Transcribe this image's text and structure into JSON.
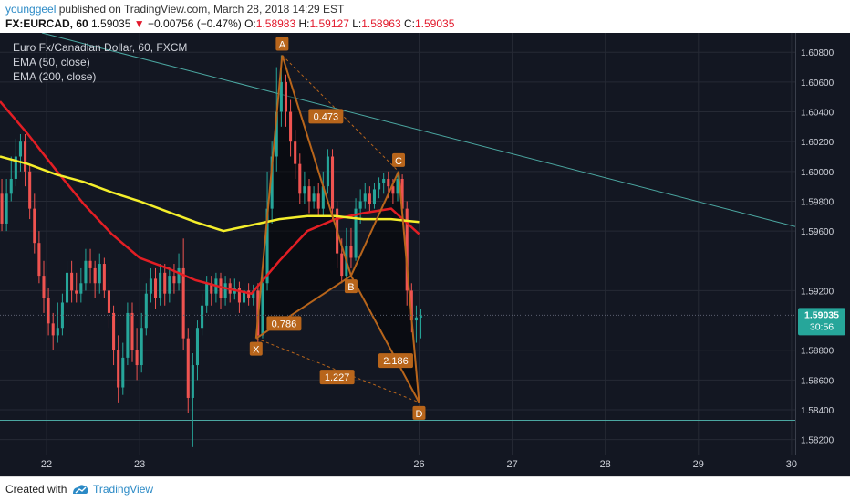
{
  "header": {
    "user": "younggeel",
    "published": "published on TradingView.com, March 28, 2018 14:29 EST",
    "symbol": "FX:EURCAD, 60",
    "last": "1.59035",
    "change_arrow": "▼",
    "change": "−0.00756 (−0.47%)",
    "o_label": "O:",
    "o_val": "1.58983",
    "h_label": "H:",
    "h_val": "1.59127",
    "l_label": "L:",
    "l_val": "1.58963",
    "c_label": "C:",
    "c_val": "1.59035"
  },
  "legend": {
    "title": "Euro Fx/Canadian Dollar, 60, FXCM",
    "ema50": "EMA (50, close)",
    "ema200": "EMA (200, close)"
  },
  "price_tag": {
    "price": "1.59035",
    "countdown": "30:56"
  },
  "footer": {
    "created": "Created with",
    "brand": "TradingView"
  },
  "colors": {
    "background": "#131722",
    "up": "#26a69a",
    "down": "#ef5350",
    "ema50": "#e31e24",
    "ema200": "#f4ee2b",
    "pattern": "#b8651b",
    "trendline": "#4ba7a1"
  },
  "chart_data": {
    "type": "candlestick",
    "title": "Euro Fx/Canadian Dollar, 60, FXCM",
    "ylim": [
      1.581,
      1.6093
    ],
    "xlim": [
      21.5,
      30.04
    ],
    "y_ticks": [
      "1.60800",
      "1.60600",
      "1.60400",
      "1.60200",
      "1.60000",
      "1.59800",
      "1.59600",
      "1.59200",
      "1.58800",
      "1.58600",
      "1.58400",
      "1.58200"
    ],
    "x_ticks": [
      {
        "x": 22,
        "label": "22"
      },
      {
        "x": 23,
        "label": "23"
      },
      {
        "x": 26,
        "label": "26"
      },
      {
        "x": 27,
        "label": "27"
      },
      {
        "x": 28,
        "label": "28"
      },
      {
        "x": 29,
        "label": "29"
      },
      {
        "x": 30,
        "label": "30"
      }
    ],
    "candles": [
      [
        21.52,
        1.5985,
        1.5965,
        1.5995,
        1.596
      ],
      [
        21.57,
        1.5965,
        1.5985,
        1.5995,
        1.596
      ],
      [
        21.62,
        1.5985,
        1.5995,
        1.601,
        1.598
      ],
      [
        21.67,
        1.5995,
        1.601,
        1.6022,
        1.599
      ],
      [
        21.72,
        1.601,
        1.602,
        1.6025,
        1.6
      ],
      [
        21.77,
        1.602,
        1.6,
        1.6025,
        1.599
      ],
      [
        21.82,
        1.6,
        1.5975,
        1.6005,
        1.5968
      ],
      [
        21.87,
        1.5975,
        1.5952,
        1.5985,
        1.5945
      ],
      [
        21.92,
        1.5952,
        1.593,
        1.596,
        1.5925
      ],
      [
        21.97,
        1.593,
        1.5915,
        1.594,
        1.5905
      ],
      [
        22.02,
        1.5915,
        1.5898,
        1.5922,
        1.589
      ],
      [
        22.07,
        1.5898,
        1.589,
        1.5905,
        1.588
      ],
      [
        22.12,
        1.589,
        1.5895,
        1.5912,
        1.5885
      ],
      [
        22.17,
        1.5895,
        1.5912,
        1.5918,
        1.589
      ],
      [
        22.22,
        1.5912,
        1.5932,
        1.594,
        1.5908
      ],
      [
        22.27,
        1.5932,
        1.592,
        1.594,
        1.5912
      ],
      [
        22.32,
        1.592,
        1.5918,
        1.5932,
        1.5912
      ],
      [
        22.37,
        1.5918,
        1.5925,
        1.5935,
        1.5912
      ],
      [
        22.42,
        1.5925,
        1.594,
        1.5948,
        1.592
      ],
      [
        22.47,
        1.594,
        1.5935,
        1.5948,
        1.5925
      ],
      [
        22.52,
        1.5935,
        1.5925,
        1.594,
        1.5915
      ],
      [
        22.57,
        1.5925,
        1.5938,
        1.5945,
        1.5918
      ],
      [
        22.62,
        1.5938,
        1.592,
        1.5942,
        1.5915
      ],
      [
        22.67,
        1.592,
        1.5905,
        1.5925,
        1.5895
      ],
      [
        22.72,
        1.5905,
        1.588,
        1.591,
        1.587
      ],
      [
        22.77,
        1.588,
        1.5855,
        1.589,
        1.5845
      ],
      [
        22.82,
        1.5855,
        1.5875,
        1.5885,
        1.585
      ],
      [
        22.87,
        1.5875,
        1.5905,
        1.5912,
        1.587
      ],
      [
        22.92,
        1.5905,
        1.588,
        1.5912,
        1.5872
      ],
      [
        22.97,
        1.588,
        1.587,
        1.5895,
        1.586
      ],
      [
        23.02,
        1.587,
        1.5895,
        1.5905,
        1.5865
      ],
      [
        23.07,
        1.5895,
        1.5918,
        1.5925,
        1.589
      ],
      [
        23.12,
        1.5918,
        1.5928,
        1.5935,
        1.5912
      ],
      [
        23.17,
        1.5928,
        1.5915,
        1.5935,
        1.5908
      ],
      [
        23.22,
        1.5915,
        1.5932,
        1.5938,
        1.591
      ],
      [
        23.27,
        1.5932,
        1.5918,
        1.5938,
        1.591
      ],
      [
        23.32,
        1.5918,
        1.593,
        1.5936,
        1.5912
      ],
      [
        23.37,
        1.593,
        1.5925,
        1.5938,
        1.5918
      ],
      [
        23.42,
        1.5925,
        1.5935,
        1.5945,
        1.592
      ],
      [
        23.47,
        1.5935,
        1.5888,
        1.5955,
        1.588
      ],
      [
        23.52,
        1.5888,
        1.5848,
        1.5895,
        1.5838
      ],
      [
        23.57,
        1.5848,
        1.587,
        1.5878,
        1.5815
      ],
      [
        23.62,
        1.587,
        1.5895,
        1.59,
        1.586
      ],
      [
        23.67,
        1.5895,
        1.591,
        1.5918,
        1.589
      ],
      [
        23.72,
        1.591,
        1.5925,
        1.593,
        1.5905
      ],
      [
        23.77,
        1.5925,
        1.5918,
        1.593,
        1.591
      ],
      [
        23.82,
        1.5918,
        1.5928,
        1.5932,
        1.5912
      ],
      [
        23.87,
        1.5928,
        1.5915,
        1.5932,
        1.5908
      ],
      [
        23.92,
        1.5915,
        1.5925,
        1.593,
        1.591
      ],
      [
        23.97,
        1.5925,
        1.5918,
        1.5928,
        1.5912
      ],
      [
        24.02,
        1.5918,
        1.5922,
        1.5928,
        1.5914
      ],
      [
        24.07,
        1.5922,
        1.5912,
        1.5926,
        1.5905
      ],
      [
        24.12,
        1.5912,
        1.592,
        1.5925,
        1.5907
      ],
      [
        24.17,
        1.592,
        1.5915,
        1.5925,
        1.591
      ],
      [
        24.22,
        1.5915,
        1.592,
        1.5924,
        1.591
      ],
      [
        24.27,
        1.592,
        1.589,
        1.5925,
        1.5885
      ],
      [
        24.32,
        1.589,
        1.5925,
        1.5935,
        1.5888
      ],
      [
        24.37,
        1.5925,
        1.5975,
        1.6,
        1.592
      ],
      [
        24.42,
        1.5975,
        1.601,
        1.602,
        1.5965
      ],
      [
        24.47,
        1.601,
        1.604,
        1.607,
        1.6
      ],
      [
        24.52,
        1.604,
        1.606,
        1.6078,
        1.603
      ],
      [
        24.57,
        1.606,
        1.604,
        1.6065,
        1.603
      ],
      [
        24.62,
        1.604,
        1.602,
        1.6048,
        1.601
      ],
      [
        24.67,
        1.602,
        1.6005,
        1.6028,
        1.5995
      ],
      [
        24.72,
        1.6005,
        1.5985,
        1.6012,
        1.5978
      ],
      [
        24.77,
        1.5985,
        1.599,
        1.6,
        1.5978
      ],
      [
        24.82,
        1.599,
        1.598,
        1.5995,
        1.5972
      ],
      [
        24.87,
        1.598,
        1.5985,
        1.599,
        1.5975
      ],
      [
        24.92,
        1.5985,
        1.5975,
        1.5992,
        1.597
      ],
      [
        24.97,
        1.5975,
        1.599,
        1.6,
        1.597
      ],
      [
        25.02,
        1.599,
        1.601,
        1.6015,
        1.5985
      ],
      [
        25.07,
        1.601,
        1.5975,
        1.6015,
        1.5968
      ],
      [
        25.12,
        1.5975,
        1.5945,
        1.598,
        1.5935
      ],
      [
        25.17,
        1.5945,
        1.593,
        1.5955,
        1.5925
      ],
      [
        25.22,
        1.593,
        1.595,
        1.5962,
        1.592
      ],
      [
        25.27,
        1.595,
        1.5942,
        1.5962,
        1.5935
      ],
      [
        25.32,
        1.5942,
        1.5975,
        1.5982,
        1.594
      ],
      [
        25.37,
        1.5975,
        1.598,
        1.5988,
        1.5965
      ],
      [
        25.42,
        1.598,
        1.5985,
        1.5992,
        1.5975
      ],
      [
        25.47,
        1.5985,
        1.5978,
        1.599,
        1.5972
      ],
      [
        25.52,
        1.5978,
        1.5988,
        1.5992,
        1.5975
      ],
      [
        25.57,
        1.5988,
        1.5992,
        1.5996,
        1.5982
      ],
      [
        25.62,
        1.5992,
        1.5995,
        1.5999,
        1.5985
      ],
      [
        25.67,
        1.5995,
        1.599,
        1.6,
        1.5982
      ],
      [
        25.72,
        1.599,
        1.5985,
        1.5995,
        1.5978
      ],
      [
        25.77,
        1.5985,
        1.5995,
        1.6,
        1.598
      ],
      [
        25.82,
        1.5995,
        1.5975,
        1.5998,
        1.5968
      ],
      [
        25.87,
        1.5975,
        1.592,
        1.598,
        1.591
      ],
      [
        25.92,
        1.592,
        1.59,
        1.5925,
        1.5892
      ],
      [
        25.97,
        1.59,
        1.5902,
        1.591,
        1.5885
      ],
      [
        26.02,
        1.5902,
        1.5903,
        1.5908,
        1.5888
      ]
    ],
    "series": [
      {
        "name": "EMA (50, close)",
        "x": [
          21.5,
          21.8,
          22.1,
          22.4,
          22.7,
          23.0,
          23.3,
          23.6,
          23.9,
          24.2,
          24.5,
          24.8,
          25.1,
          25.4,
          25.7,
          26.0
        ],
        "y": [
          1.6047,
          1.6025,
          1.6001,
          1.5978,
          1.5958,
          1.5942,
          1.5935,
          1.5927,
          1.5922,
          1.5918,
          1.594,
          1.596,
          1.5968,
          1.5972,
          1.5975,
          1.5958
        ]
      },
      {
        "name": "EMA (200, close)",
        "x": [
          21.5,
          21.8,
          22.1,
          22.4,
          22.7,
          23.0,
          23.3,
          23.6,
          23.9,
          24.2,
          24.5,
          24.8,
          25.1,
          25.4,
          25.7,
          26.0
        ],
        "y": [
          1.601,
          1.6005,
          1.5998,
          1.5993,
          1.5986,
          1.598,
          1.5973,
          1.5966,
          1.596,
          1.5964,
          1.5968,
          1.597,
          1.597,
          1.5968,
          1.5968,
          1.5966
        ]
      }
    ],
    "pattern": {
      "points": [
        {
          "label": "X",
          "x": 24.25,
          "y": 1.5888
        },
        {
          "label": "A",
          "x": 24.53,
          "y": 1.6078
        },
        {
          "label": "B",
          "x": 25.27,
          "y": 1.593
        },
        {
          "label": "C",
          "x": 25.78,
          "y": 1.6
        },
        {
          "label": "D",
          "x": 26.0,
          "y": 1.5845
        }
      ],
      "ratios": [
        {
          "label": "0.473",
          "x": 25.0,
          "y": 1.6037
        },
        {
          "label": "0.786",
          "x": 24.55,
          "y": 1.5898
        },
        {
          "label": "2.186",
          "x": 25.75,
          "y": 1.5873
        },
        {
          "label": "1.227",
          "x": 25.12,
          "y": 1.5862
        }
      ]
    },
    "trend_lines": [
      {
        "x": [
          21.95,
          30.04
        ],
        "y": [
          1.6093,
          1.5963
        ]
      },
      {
        "x": [
          21.5,
          30.04
        ],
        "y": [
          1.5833,
          1.5833
        ]
      }
    ],
    "last_price": 1.59035
  }
}
